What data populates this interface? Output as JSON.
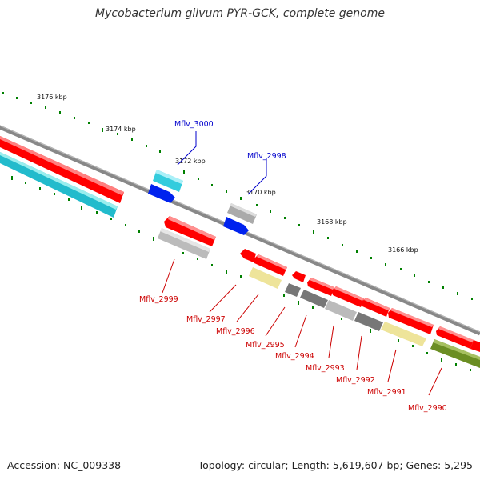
{
  "title": "Mycobacterium gilvum PYR-GCK, complete genome",
  "footer": {
    "accession": "Accession: NC_009338",
    "summary": "Topology: circular; Length: 5,619,607 bp; Genes: 5,295"
  },
  "scale_labels": [
    "3176 kbp",
    "3174 kbp",
    "3172 kbp",
    "3170 kbp",
    "3168 kbp",
    "3166 kbp"
  ],
  "gene_labels": {
    "forward": [
      "Mflv_3000",
      "Mflv_2998"
    ],
    "reverse": [
      "Mflv_2999",
      "Mflv_2997",
      "Mflv_2996",
      "Mflv_2995",
      "Mflv_2994",
      "Mflv_2993",
      "Mflv_2992",
      "Mflv_2991",
      "Mflv_2990"
    ]
  },
  "colors": {
    "backbone": "#888888",
    "forward_label": "#0000cc",
    "reverse_label": "#cc0000",
    "cds": "#ff0000",
    "blue_feature": "#0022ee",
    "cyan_feature": "#33ccdd",
    "gray_feature": "#bbbbbb",
    "dark_gray_feature": "#777777",
    "yellow_feature": "#eee49a",
    "olive_feature": "#6b8e23",
    "tick": "#008000"
  }
}
